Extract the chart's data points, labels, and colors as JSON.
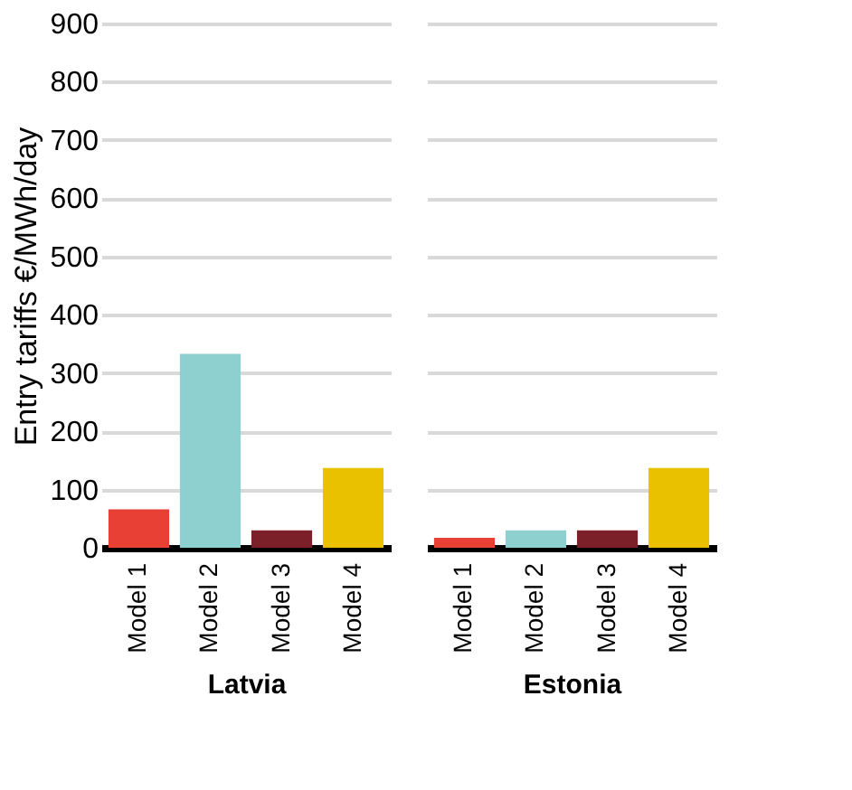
{
  "chart_data": [
    {
      "type": "bar",
      "ylabel": "Entry tariffs €/MWh/day",
      "xlabel": "Latvia",
      "categories": [
        "Model 1",
        "Model 2",
        "Model 3",
        "Model 4"
      ],
      "values": [
        66,
        333,
        30,
        137
      ],
      "colors": [
        "#e84034",
        "#8ecfd0",
        "#7b2029",
        "#eac100"
      ],
      "ylim": [
        0,
        900
      ],
      "yticks": [
        0,
        100,
        200,
        300,
        400,
        500,
        600,
        700,
        800,
        900
      ],
      "grid": "y"
    },
    {
      "type": "bar",
      "xlabel": "Estonia",
      "categories": [
        "Model 1",
        "Model 2",
        "Model 3",
        "Model 4"
      ],
      "values": [
        17,
        30,
        30,
        137
      ],
      "colors": [
        "#e84034",
        "#8ecfd0",
        "#7b2029",
        "#eac100"
      ],
      "ylim": [
        0,
        900
      ],
      "yticks": [
        0,
        100,
        200,
        300,
        400,
        500,
        600,
        700,
        800,
        900
      ],
      "grid": "y",
      "tick_labels": "x"
    }
  ]
}
